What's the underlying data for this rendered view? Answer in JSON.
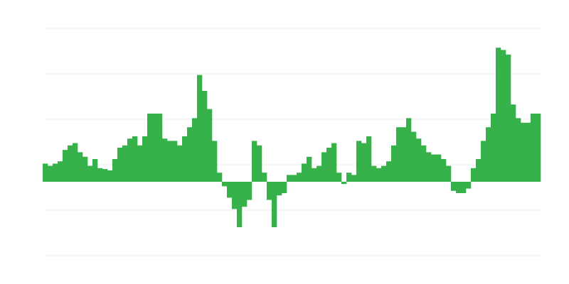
{
  "chart_data": {
    "type": "bar",
    "color": "#37b24b",
    "grid": true,
    "ylim": [
      -16.25,
      33.75
    ],
    "yticks": [
      -16.25,
      -6.25,
      3.75,
      13.75,
      23.75,
      33.75
    ],
    "categories": [
      null,
      null,
      null,
      null,
      null,
      null,
      null,
      null,
      null,
      null,
      null,
      null,
      null,
      null,
      null,
      null,
      null,
      null,
      null,
      null,
      null,
      null,
      null,
      null,
      null,
      null,
      null,
      null,
      null,
      null,
      null,
      null,
      null,
      null,
      null,
      null,
      null,
      null,
      null,
      null,
      null,
      null,
      null,
      null,
      null,
      null,
      null,
      null,
      null,
      null,
      null,
      null,
      null,
      null,
      null,
      null,
      null,
      null,
      null,
      null,
      null,
      null,
      null,
      null,
      null,
      null,
      null,
      null,
      null,
      null,
      null,
      null,
      null,
      null,
      null,
      null,
      null,
      null,
      null,
      null,
      null,
      null,
      null,
      null,
      null,
      null,
      null,
      null,
      null,
      null,
      null,
      null,
      null,
      null,
      null,
      null,
      null,
      null,
      null,
      null
    ],
    "values": [
      4,
      3.5,
      4,
      4.5,
      7,
      8,
      8.5,
      6.5,
      5.5,
      3.5,
      5,
      3,
      2.8,
      2.5,
      5,
      7.5,
      8,
      9.5,
      10,
      8,
      10,
      15,
      15,
      15,
      9.5,
      9,
      9,
      8,
      10,
      12,
      14,
      23.5,
      20,
      16,
      9,
      2,
      -1,
      -3.5,
      -6,
      -10,
      -5.5,
      -4,
      9,
      8,
      2,
      -4,
      -10,
      -3,
      -2.5,
      1.5,
      1.5,
      2,
      4,
      5.5,
      3,
      3.5,
      6.5,
      7.5,
      8.5,
      2,
      -0.5,
      2,
      1.5,
      9,
      8.5,
      10,
      3.5,
      3,
      3.5,
      4.5,
      8,
      12,
      12,
      14,
      11,
      9.5,
      8,
      6.5,
      6,
      6,
      5,
      3.5,
      -2,
      -2.5,
      -2.5,
      -1.5,
      3,
      5,
      9,
      12,
      15,
      29.5,
      29,
      28,
      17,
      14,
      13,
      13,
      15,
      15
    ]
  }
}
